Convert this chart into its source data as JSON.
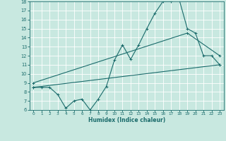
{
  "xlabel": "Humidex (Indice chaleur)",
  "xlim": [
    -0.5,
    23.5
  ],
  "ylim": [
    6,
    18
  ],
  "xticks": [
    0,
    1,
    2,
    3,
    4,
    5,
    6,
    7,
    8,
    9,
    10,
    11,
    12,
    13,
    14,
    15,
    16,
    17,
    18,
    19,
    20,
    21,
    22,
    23
  ],
  "yticks": [
    6,
    7,
    8,
    9,
    10,
    11,
    12,
    13,
    14,
    15,
    16,
    17,
    18
  ],
  "bg_color": "#c8e8e0",
  "line_color": "#1a6b6b",
  "line1_x": [
    0,
    1,
    2,
    3,
    4,
    5,
    6,
    7,
    8,
    9,
    10,
    11,
    12,
    13,
    14,
    15,
    16,
    17,
    18,
    19,
    20,
    21,
    22,
    23
  ],
  "line1_y": [
    8.5,
    8.5,
    8.5,
    7.7,
    6.2,
    7.0,
    7.2,
    6.0,
    7.2,
    8.6,
    11.5,
    13.2,
    11.6,
    13.2,
    15.0,
    16.7,
    18.0,
    18.0,
    18.2,
    15.0,
    14.5,
    12.0,
    12.0,
    11.0
  ],
  "line2_x": [
    0,
    23
  ],
  "line2_y": [
    8.5,
    11.0
  ],
  "line3_x": [
    0,
    19,
    23
  ],
  "line3_y": [
    9.0,
    14.5,
    12.0
  ],
  "grid_color": "#a8d8d0"
}
